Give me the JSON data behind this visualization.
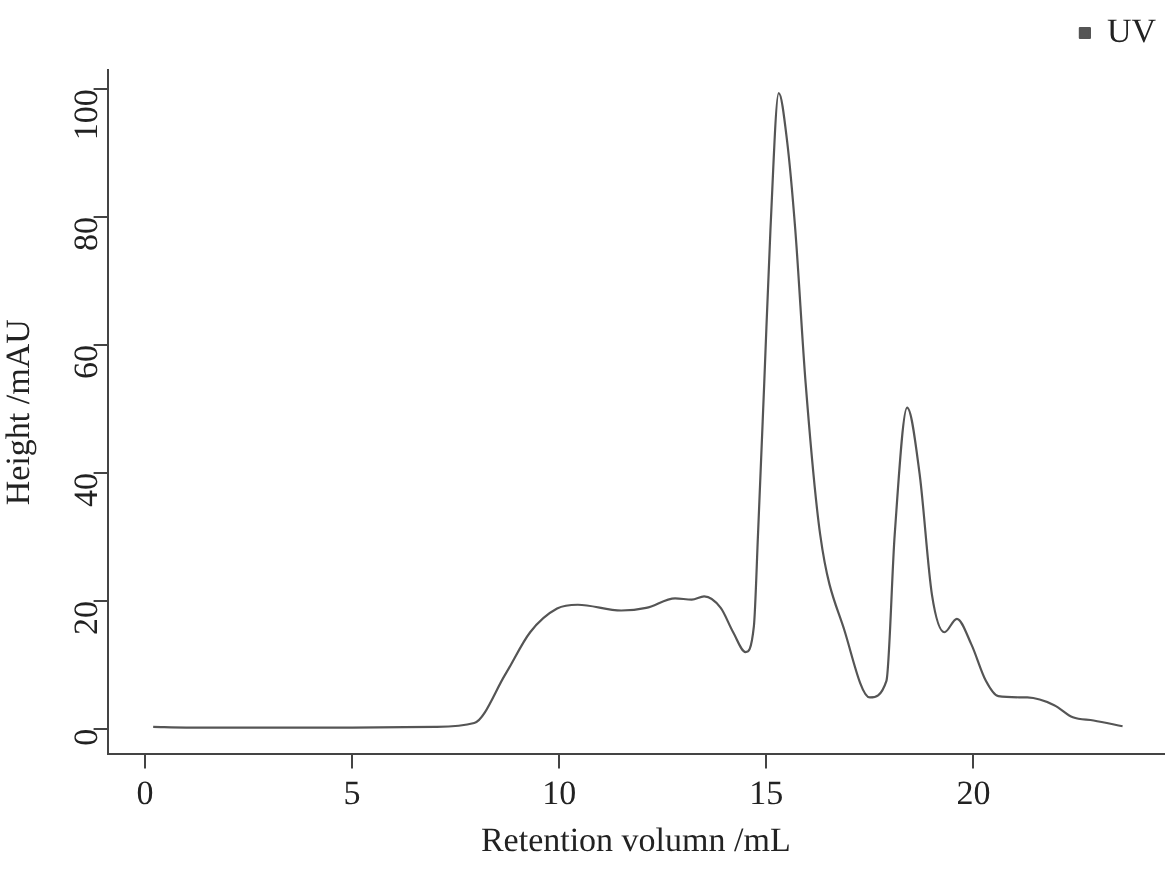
{
  "chart_data": {
    "type": "line",
    "xlabel": "Retention volumn /mL",
    "ylabel": "Height /mAU",
    "xlim": [
      -0.9,
      24.6
    ],
    "ylim": [
      -4,
      103
    ],
    "xticks": [
      0,
      5,
      10,
      15,
      20
    ],
    "yticks": [
      0,
      20,
      40,
      60,
      80,
      100
    ],
    "grid": false,
    "legend": "top right",
    "marker": "none",
    "line_style": "solid",
    "series": [
      {
        "name": "UV",
        "color": "#555555",
        "x": [
          0.2,
          1,
          3,
          5,
          7,
          7.95,
          8.7,
          9.3,
          9.95,
          10.45,
          11.5,
          12.1,
          12.8,
          13.2,
          13.5,
          13.9,
          14.2,
          14.5,
          14.7,
          14.8,
          14.95,
          15.1,
          15.3,
          15.5,
          15.7,
          15.95,
          16.3,
          16.9,
          17.5,
          17.9,
          18.1,
          18.4,
          18.7,
          19.0,
          19.3,
          19.6,
          19.95,
          20.3,
          20.6,
          21.3,
          21.95,
          22.4,
          22.9,
          23.6
        ],
        "values": [
          0.3,
          0.2,
          0.2,
          0.2,
          0.3,
          0.9,
          8.5,
          15.1,
          18.8,
          19.4,
          18.5,
          18.9,
          20.4,
          20.2,
          20.7,
          18.9,
          15.1,
          12,
          16,
          30.4,
          54,
          78,
          99.4,
          92,
          78,
          54,
          30.4,
          15.1,
          4.9,
          7.5,
          30.4,
          50.2,
          39.9,
          20.9,
          15.1,
          17.2,
          13.2,
          7.5,
          5.1,
          4.9,
          3.7,
          1.8,
          1.3,
          0.4
        ]
      }
    ]
  }
}
